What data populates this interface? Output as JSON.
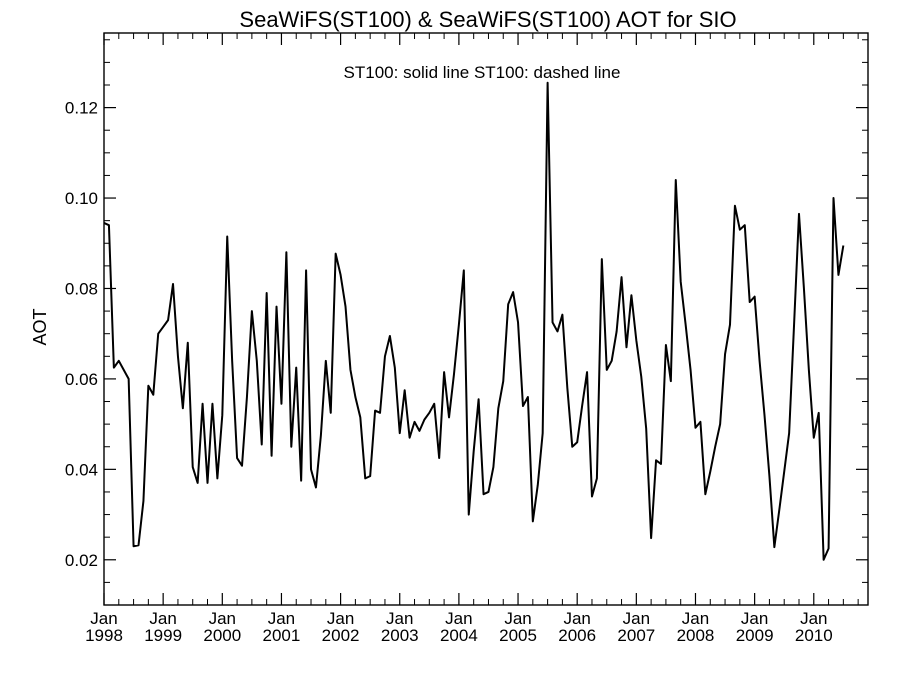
{
  "chart_data": {
    "type": "line",
    "title": "SeaWiFS(ST100) & SeaWiFS(ST100)  AOT for SIO",
    "legend_text": "ST100: solid line   ST100: dashed line",
    "legend_placement": "top-center",
    "ylabel": "AOT",
    "xlabel": "",
    "grid": false,
    "xlim": [
      "1998-01",
      "2010-12"
    ],
    "ylim": [
      0.01,
      0.1365
    ],
    "y_ticks": [
      "0.02",
      "0.04",
      "0.06",
      "0.08",
      "0.10",
      "0.12"
    ],
    "y_tick_values": [
      0.02,
      0.04,
      0.06,
      0.08,
      0.1,
      0.12
    ],
    "x_ticks": [
      {
        "month": "Jan",
        "year": "1998"
      },
      {
        "month": "Jan",
        "year": "1999"
      },
      {
        "month": "Jan",
        "year": "2000"
      },
      {
        "month": "Jan",
        "year": "2001"
      },
      {
        "month": "Jan",
        "year": "2002"
      },
      {
        "month": "Jan",
        "year": "2003"
      },
      {
        "month": "Jan",
        "year": "2004"
      },
      {
        "month": "Jan",
        "year": "2005"
      },
      {
        "month": "Jan",
        "year": "2006"
      },
      {
        "month": "Jan",
        "year": "2007"
      },
      {
        "month": "Jan",
        "year": "2008"
      },
      {
        "month": "Jan",
        "year": "2009"
      },
      {
        "month": "Jan",
        "year": "2010"
      }
    ],
    "series": [
      {
        "style": "solid",
        "color": "#000000",
        "points": [
          [
            "1998-01",
            0.0945
          ],
          [
            "1998-02",
            0.094
          ],
          [
            "1998-03",
            0.0625
          ],
          [
            "1998-04",
            0.064
          ],
          [
            "1998-05",
            0.062
          ],
          [
            "1998-06",
            0.06
          ],
          [
            "1998-07",
            0.023
          ],
          [
            "1998-08",
            0.0232
          ],
          [
            "1998-09",
            0.033
          ],
          [
            "1998-10",
            0.0585
          ],
          [
            "1998-11",
            0.0565
          ],
          [
            "1998-12",
            0.07
          ],
          [
            "1999-01",
            0.0715
          ],
          [
            "1999-02",
            0.073
          ],
          [
            "1999-03",
            0.081
          ],
          [
            "1999-04",
            0.065
          ],
          [
            "1999-05",
            0.0535
          ],
          [
            "1999-06",
            0.068
          ],
          [
            "1999-07",
            0.0405
          ],
          [
            "1999-08",
            0.037
          ],
          [
            "1999-09",
            0.0545
          ],
          [
            "1999-10",
            0.037
          ],
          [
            "1999-11",
            0.0545
          ],
          [
            "1999-12",
            0.038
          ],
          [
            "2000-01",
            0.052
          ],
          [
            "2000-02",
            0.0915
          ],
          [
            "2000-03",
            0.064
          ],
          [
            "2000-04",
            0.0425
          ],
          [
            "2000-05",
            0.0408
          ],
          [
            "2000-06",
            0.056
          ],
          [
            "2000-07",
            0.075
          ],
          [
            "2000-08",
            0.064
          ],
          [
            "2000-09",
            0.0455
          ],
          [
            "2000-10",
            0.079
          ],
          [
            "2000-11",
            0.043
          ],
          [
            "2000-12",
            0.076
          ],
          [
            "2001-01",
            0.0545
          ],
          [
            "2001-02",
            0.088
          ],
          [
            "2001-03",
            0.045
          ],
          [
            "2001-04",
            0.0625
          ],
          [
            "2001-05",
            0.0375
          ],
          [
            "2001-06",
            0.084
          ],
          [
            "2001-07",
            0.04
          ],
          [
            "2001-08",
            0.036
          ],
          [
            "2001-09",
            0.0475
          ],
          [
            "2001-10",
            0.064
          ],
          [
            "2001-11",
            0.0525
          ],
          [
            "2001-12",
            0.0877
          ],
          [
            "2002-01",
            0.083
          ],
          [
            "2002-02",
            0.076
          ],
          [
            "2002-03",
            0.062
          ],
          [
            "2002-04",
            0.056
          ],
          [
            "2002-05",
            0.0515
          ],
          [
            "2002-06",
            0.038
          ],
          [
            "2002-07",
            0.0385
          ],
          [
            "2002-08",
            0.053
          ],
          [
            "2002-09",
            0.0525
          ],
          [
            "2002-10",
            0.065
          ],
          [
            "2002-11",
            0.0695
          ],
          [
            "2002-12",
            0.0625
          ],
          [
            "2003-01",
            0.048
          ],
          [
            "2003-02",
            0.0575
          ],
          [
            "2003-03",
            0.047
          ],
          [
            "2003-04",
            0.0505
          ],
          [
            "2003-05",
            0.0485
          ],
          [
            "2003-06",
            0.051
          ],
          [
            "2003-07",
            0.0525
          ],
          [
            "2003-08",
            0.0545
          ],
          [
            "2003-09",
            0.0425
          ],
          [
            "2003-10",
            0.0615
          ],
          [
            "2003-11",
            0.0515
          ],
          [
            "2003-12",
            0.061
          ],
          [
            "2004-01",
            0.072
          ],
          [
            "2004-02",
            0.084
          ],
          [
            "2004-03",
            0.03
          ],
          [
            "2004-04",
            0.044
          ],
          [
            "2004-05",
            0.0555
          ],
          [
            "2004-06",
            0.0345
          ],
          [
            "2004-07",
            0.035
          ],
          [
            "2004-08",
            0.0405
          ],
          [
            "2004-09",
            0.0535
          ],
          [
            "2004-10",
            0.0595
          ],
          [
            "2004-11",
            0.0765
          ],
          [
            "2004-12",
            0.0792
          ],
          [
            "2005-01",
            0.0725
          ],
          [
            "2005-02",
            0.054
          ],
          [
            "2005-03",
            0.056
          ],
          [
            "2005-04",
            0.0285
          ],
          [
            "2005-05",
            0.0365
          ],
          [
            "2005-06",
            0.048
          ],
          [
            "2005-07",
            0.1255
          ],
          [
            "2005-08",
            0.0725
          ],
          [
            "2005-09",
            0.0705
          ],
          [
            "2005-10",
            0.0742
          ],
          [
            "2005-11",
            0.058
          ],
          [
            "2005-12",
            0.045
          ],
          [
            "2006-01",
            0.046
          ],
          [
            "2006-02",
            0.054
          ],
          [
            "2006-03",
            0.0615
          ],
          [
            "2006-04",
            0.034
          ],
          [
            "2006-05",
            0.038
          ],
          [
            "2006-06",
            0.0865
          ],
          [
            "2006-07",
            0.062
          ],
          [
            "2006-08",
            0.064
          ],
          [
            "2006-09",
            0.0705
          ],
          [
            "2006-10",
            0.0825
          ],
          [
            "2006-11",
            0.067
          ],
          [
            "2006-12",
            0.0785
          ],
          [
            "2007-01",
            0.0685
          ],
          [
            "2007-02",
            0.0605
          ],
          [
            "2007-03",
            0.049
          ],
          [
            "2007-04",
            0.0248
          ],
          [
            "2007-05",
            0.042
          ],
          [
            "2007-06",
            0.0412
          ],
          [
            "2007-07",
            0.0675
          ],
          [
            "2007-08",
            0.0595
          ],
          [
            "2007-09",
            0.104
          ],
          [
            "2007-10",
            0.0815
          ],
          [
            "2007-11",
            0.072
          ],
          [
            "2007-12",
            0.062
          ],
          [
            "2008-01",
            0.0492
          ],
          [
            "2008-02",
            0.0505
          ],
          [
            "2008-03",
            0.0345
          ],
          [
            "2008-04",
            0.0395
          ],
          [
            "2008-05",
            0.045
          ],
          [
            "2008-06",
            0.05
          ],
          [
            "2008-07",
            0.0655
          ],
          [
            "2008-08",
            0.072
          ],
          [
            "2008-09",
            0.0983
          ],
          [
            "2008-10",
            0.093
          ],
          [
            "2008-11",
            0.094
          ],
          [
            "2008-12",
            0.077
          ],
          [
            "2009-01",
            0.0782
          ],
          [
            "2009-02",
            0.064
          ],
          [
            "2009-03",
            0.052
          ],
          [
            "2009-04",
            0.0385
          ],
          [
            "2009-05",
            0.0228
          ],
          [
            "2009-06",
            0.031
          ],
          [
            "2009-07",
            0.0395
          ],
          [
            "2009-08",
            0.048
          ],
          [
            "2009-09",
            0.072
          ],
          [
            "2009-10",
            0.0965
          ],
          [
            "2009-11",
            0.08
          ],
          [
            "2009-12",
            0.062
          ],
          [
            "2010-01",
            0.047
          ],
          [
            "2010-02",
            0.0525
          ],
          [
            "2010-03",
            0.02
          ],
          [
            "2010-04",
            0.0225
          ],
          [
            "2010-05",
            0.1
          ],
          [
            "2010-06",
            0.083
          ],
          [
            "2010-07",
            0.0895
          ]
        ]
      }
    ]
  }
}
